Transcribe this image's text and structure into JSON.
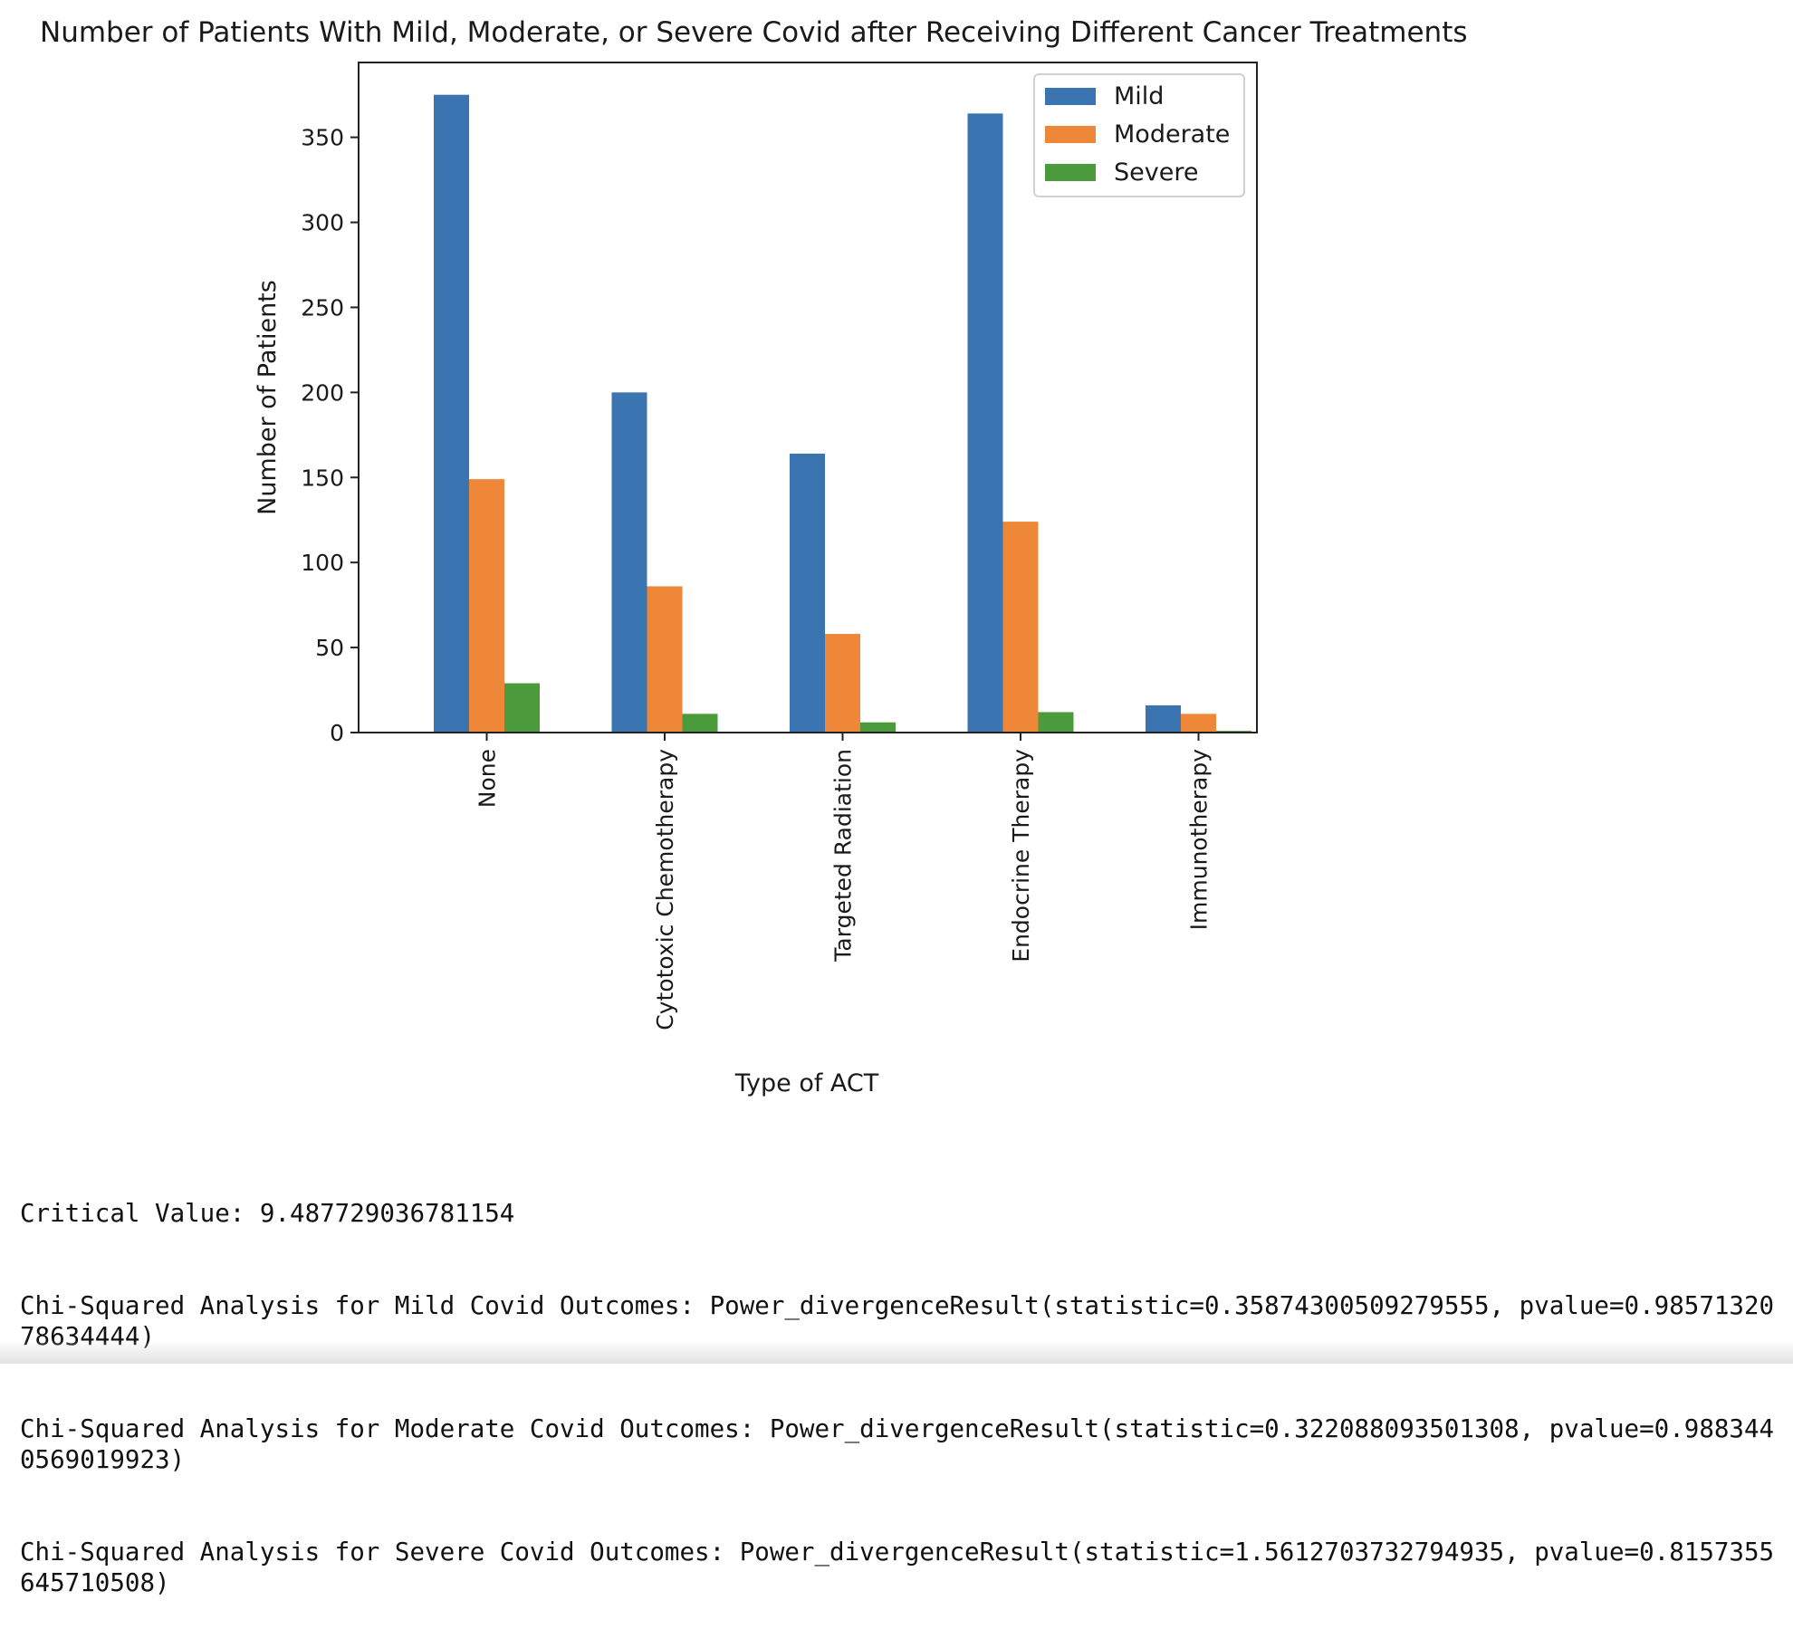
{
  "chart_data": {
    "type": "bar",
    "title": "Number of Patients With Mild, Moderate, or Severe Covid after Receiving Different Cancer Treatments",
    "xlabel": "Type of ACT",
    "ylabel": "Number of Patients",
    "categories": [
      "None",
      "Cytotoxic Chemotherapy",
      "Targeted Radiation",
      "Endocrine Therapy",
      "Immunotherapy"
    ],
    "series": [
      {
        "name": "Mild",
        "color": "#3a74b1",
        "values": [
          375,
          200,
          164,
          364,
          16
        ]
      },
      {
        "name": "Moderate",
        "color": "#ee8838",
        "values": [
          149,
          86,
          58,
          124,
          11
        ]
      },
      {
        "name": "Severe",
        "color": "#4b9a3c",
        "values": [
          29,
          11,
          6,
          12,
          1
        ]
      }
    ],
    "ylim": [
      0,
      394
    ],
    "yticks": [
      0,
      50,
      100,
      150,
      200,
      250,
      300,
      350
    ],
    "grid": false,
    "legend_position": "top-right"
  },
  "output": {
    "lines": [
      "Critical Value: 9.487729036781154",
      "Chi-Squared Analysis for Mild Covid Outcomes: Power_divergenceResult(statistic=0.35874300509279555, pvalue=0.9857132078634444)",
      "Chi-Squared Analysis for Moderate Covid Outcomes: Power_divergenceResult(statistic=0.322088093501308, pvalue=0.9883440569019923)",
      "Chi-Squared Analysis for Severe Covid Outcomes: Power_divergenceResult(statistic=1.5612703732794935, pvalue=0.8157355645710508)"
    ]
  }
}
